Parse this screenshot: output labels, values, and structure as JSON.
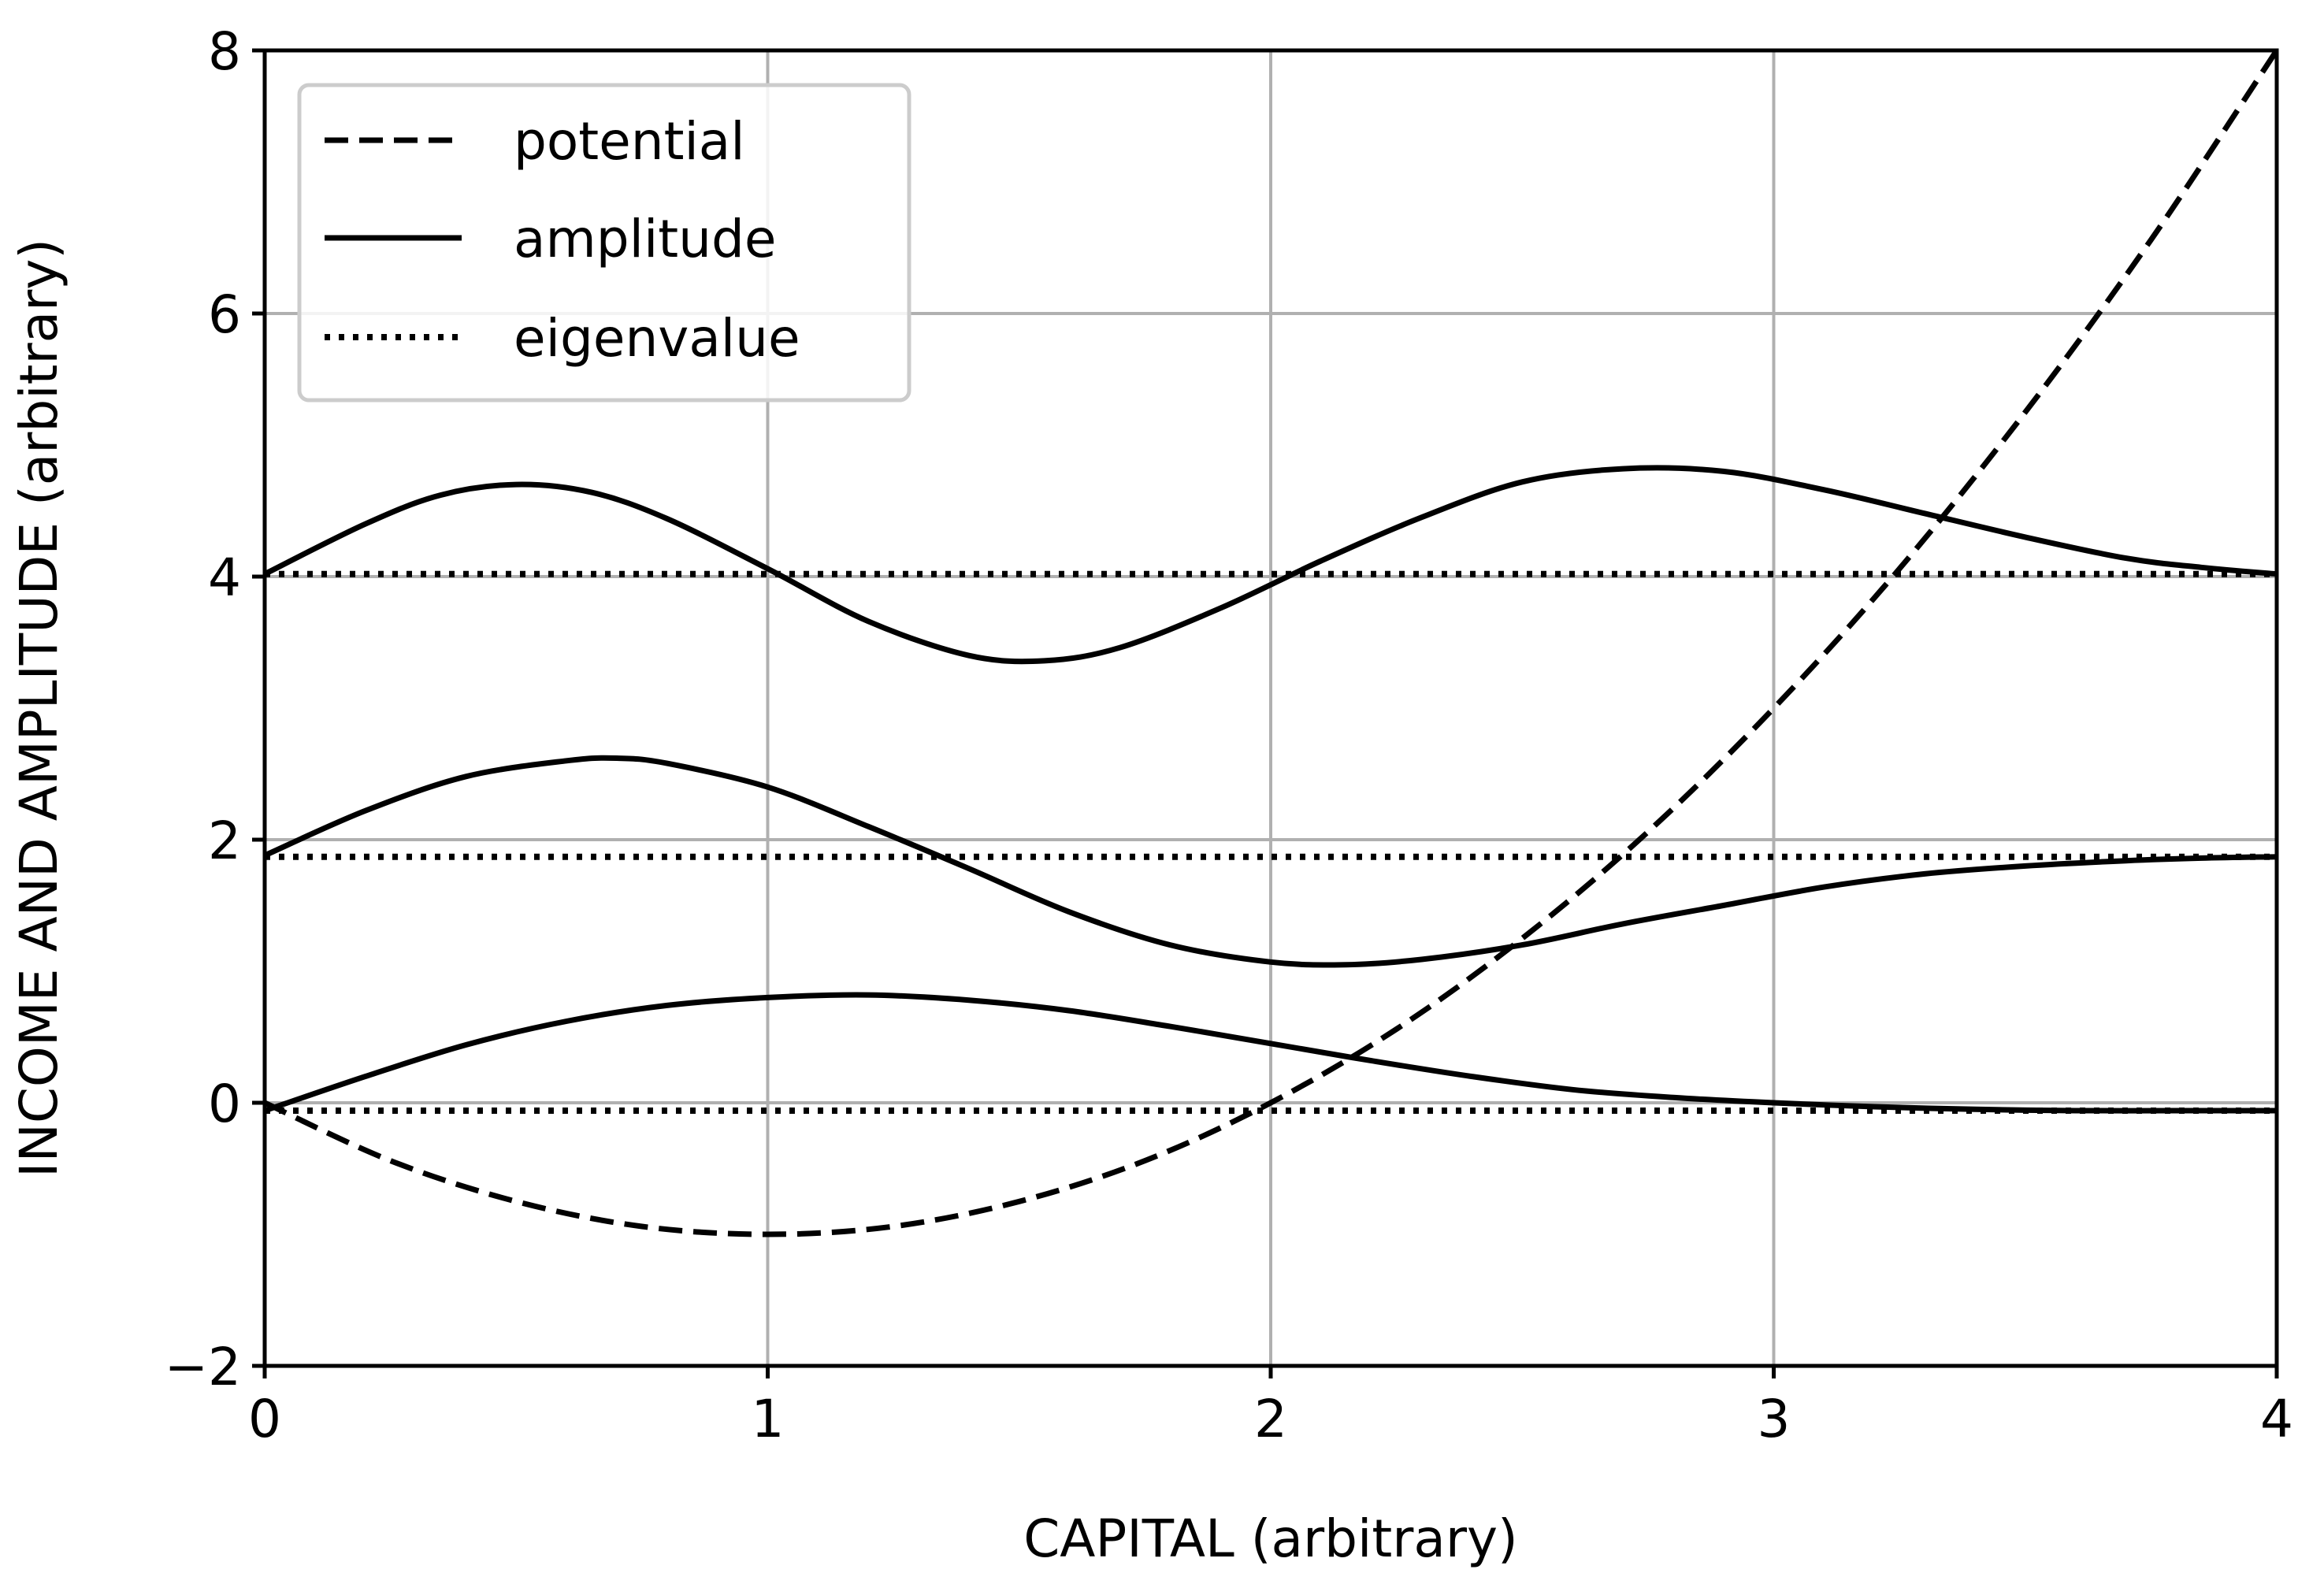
{
  "chart_data": {
    "type": "line",
    "xlabel": "CAPITAL (arbitrary)",
    "ylabel": "INCOME AND AMPLITUDE (arbitrary)",
    "xlim": [
      0,
      4
    ],
    "ylim": [
      -2,
      8
    ],
    "xticks": [
      0,
      1,
      2,
      3,
      4
    ],
    "yticks": [
      -2,
      0,
      2,
      4,
      6,
      8
    ],
    "xtick_labels": [
      "0",
      "1",
      "2",
      "3",
      "4"
    ],
    "ytick_labels": [
      "−2",
      "0",
      "2",
      "4",
      "6",
      "8"
    ],
    "grid": true,
    "legend_position": "top-left",
    "legend": [
      {
        "label": "potential",
        "style": "dashed"
      },
      {
        "label": "amplitude",
        "style": "solid"
      },
      {
        "label": "eigenvalue",
        "style": "dotted"
      }
    ],
    "series": [
      {
        "legend_entry": "potential",
        "style": "dashed",
        "x": [
          0,
          0.25,
          0.5,
          0.75,
          1.0,
          1.25,
          1.5,
          1.75,
          2.0,
          2.25,
          2.5,
          2.75,
          3.0,
          3.25,
          3.5,
          3.75,
          4.0
        ],
        "y": [
          0,
          -0.44,
          -0.75,
          -0.94,
          -1.0,
          -0.94,
          -0.75,
          -0.44,
          0,
          0.56,
          1.25,
          2.06,
          3.0,
          4.06,
          5.25,
          6.56,
          8.0
        ]
      },
      {
        "legend_entry": "amplitude",
        "style": "solid",
        "x": [
          0,
          0.2,
          0.4,
          0.6,
          0.8,
          1.0,
          1.2,
          1.4,
          1.6,
          1.8,
          2.0,
          2.2,
          2.4,
          2.6,
          2.8,
          3.0,
          3.2,
          3.4,
          3.6,
          3.8,
          4.0
        ],
        "y": [
          -0.06,
          0.2,
          0.44,
          0.62,
          0.74,
          0.8,
          0.82,
          0.78,
          0.7,
          0.58,
          0.45,
          0.32,
          0.2,
          0.1,
          0.04,
          0.0,
          -0.03,
          -0.05,
          -0.06,
          -0.06,
          -0.06
        ]
      },
      {
        "legend_entry": "amplitude",
        "style": "solid",
        "x": [
          0,
          0.2,
          0.4,
          0.6,
          0.7,
          0.8,
          1.0,
          1.2,
          1.4,
          1.6,
          1.8,
          2.0,
          2.15,
          2.3,
          2.5,
          2.7,
          2.9,
          3.1,
          3.3,
          3.5,
          3.7,
          3.85,
          4.0
        ],
        "y": [
          1.88,
          2.22,
          2.48,
          2.6,
          2.62,
          2.58,
          2.4,
          2.1,
          1.78,
          1.45,
          1.2,
          1.07,
          1.05,
          1.09,
          1.2,
          1.36,
          1.5,
          1.64,
          1.74,
          1.8,
          1.84,
          1.86,
          1.87
        ]
      },
      {
        "legend_entry": "amplitude",
        "style": "solid",
        "x": [
          0,
          0.2,
          0.35,
          0.5,
          0.65,
          0.8,
          1.0,
          1.2,
          1.4,
          1.55,
          1.7,
          1.9,
          2.1,
          2.3,
          2.5,
          2.7,
          2.9,
          3.1,
          3.3,
          3.5,
          3.7,
          3.85,
          4.0
        ],
        "y": [
          4.02,
          4.4,
          4.62,
          4.7,
          4.64,
          4.44,
          4.06,
          3.66,
          3.4,
          3.36,
          3.46,
          3.76,
          4.12,
          4.45,
          4.72,
          4.82,
          4.8,
          4.66,
          4.48,
          4.3,
          4.14,
          4.07,
          4.02
        ]
      },
      {
        "legend_entry": "eigenvalue",
        "style": "dotted",
        "x": [
          0,
          4
        ],
        "y": [
          -0.06,
          -0.06
        ]
      },
      {
        "legend_entry": "eigenvalue",
        "style": "dotted",
        "x": [
          0,
          4
        ],
        "y": [
          1.87,
          1.87
        ]
      },
      {
        "legend_entry": "eigenvalue",
        "style": "dotted",
        "x": [
          0,
          4
        ],
        "y": [
          4.02,
          4.02
        ]
      }
    ]
  }
}
